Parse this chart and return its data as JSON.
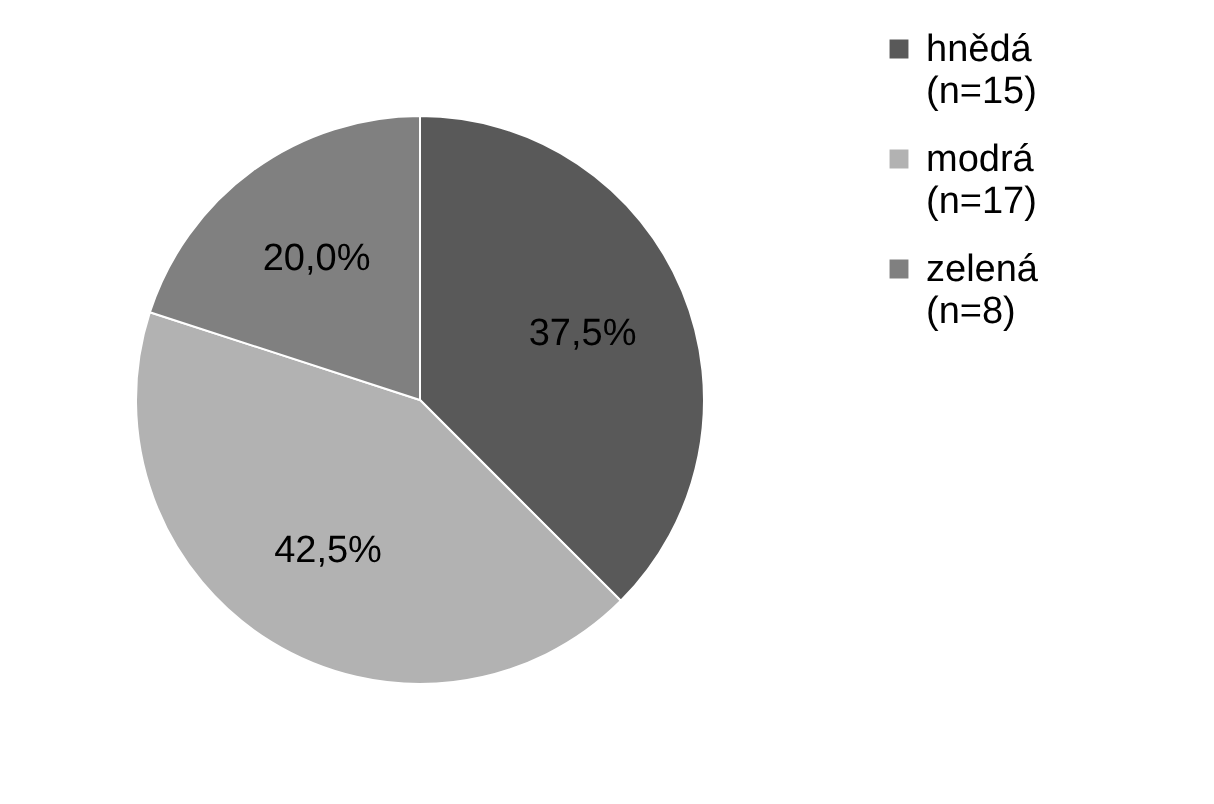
{
  "chart_data": {
    "type": "pie",
    "categories": [
      "hnědá (n=15)",
      "modrá (n=17)",
      "zelená (n=8)"
    ],
    "values": [
      37.5,
      42.5,
      20.0
    ],
    "colors": [
      "#595959",
      "#b2b2b2",
      "#808080"
    ],
    "value_labels": [
      "37,5%",
      "42,5%",
      "20,0%"
    ],
    "legend": "right"
  }
}
